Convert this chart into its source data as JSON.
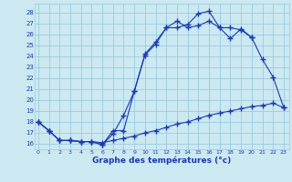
{
  "xlabel": "Graphe des températures (°c)",
  "bg_color": "#cce8f0",
  "line_color": "#1a3ab0",
  "grid_color": "#99cce0",
  "x_ticks": [
    0,
    1,
    2,
    3,
    4,
    5,
    6,
    7,
    8,
    9,
    10,
    11,
    12,
    13,
    14,
    15,
    16,
    17,
    18,
    19,
    20,
    21,
    22,
    23
  ],
  "y_ticks": [
    16,
    17,
    18,
    19,
    20,
    21,
    22,
    23,
    24,
    25,
    26,
    27,
    28
  ],
  "ylim": [
    15.5,
    28.8
  ],
  "xlim": [
    -0.3,
    23.5
  ],
  "line1_x": [
    0,
    1,
    2,
    3,
    4,
    5,
    6,
    7,
    8,
    9,
    10,
    11,
    12,
    13,
    14,
    15,
    16,
    17,
    18,
    19,
    20,
    21,
    22,
    23
  ],
  "line1_y": [
    18.0,
    17.2,
    16.3,
    16.3,
    16.2,
    16.2,
    15.9,
    16.9,
    18.6,
    20.8,
    24.1,
    25.1,
    26.6,
    26.6,
    26.9,
    27.9,
    28.1,
    26.6,
    26.6,
    26.4,
    25.7,
    23.7,
    22.1,
    19.3
  ],
  "line2_x": [
    0,
    1,
    2,
    3,
    4,
    5,
    6,
    7,
    8,
    9,
    10,
    11,
    12,
    13,
    14,
    15,
    16,
    17,
    18,
    19,
    20
  ],
  "line2_y": [
    18.0,
    17.2,
    16.3,
    16.3,
    16.2,
    16.2,
    15.9,
    17.2,
    17.2,
    20.8,
    24.2,
    25.3,
    26.6,
    27.2,
    26.6,
    26.8,
    27.2,
    26.6,
    25.6,
    26.5,
    25.7
  ],
  "line3_x": [
    0,
    1,
    2,
    3,
    4,
    5,
    6,
    7,
    8,
    9,
    10,
    11,
    12,
    13,
    14,
    15,
    16,
    17,
    18,
    19,
    20,
    21,
    22,
    23
  ],
  "line3_y": [
    18.0,
    17.2,
    16.3,
    16.3,
    16.2,
    16.2,
    16.1,
    16.3,
    16.5,
    16.7,
    17.0,
    17.2,
    17.5,
    17.8,
    18.0,
    18.3,
    18.6,
    18.8,
    19.0,
    19.2,
    19.4,
    19.5,
    19.7,
    19.3
  ]
}
